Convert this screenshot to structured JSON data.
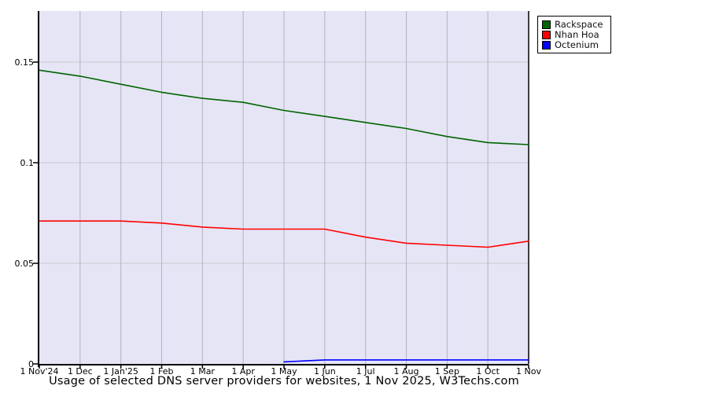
{
  "chart_data": {
    "type": "line",
    "title": "Usage of selected DNS server providers for websites, 1 Nov 2025, W3Techs.com",
    "categories": [
      "1 Nov'24",
      "1 Dec",
      "1 Jan'25",
      "1 Feb",
      "1 Mar",
      "1 Apr",
      "1 May",
      "1 Jun",
      "1 Jul",
      "1 Aug",
      "1 Sep",
      "1 Oct",
      "1 Nov"
    ],
    "series": [
      {
        "name": "Rackspace",
        "color": "#006400",
        "values": [
          0.146,
          0.143,
          0.139,
          0.135,
          0.132,
          0.13,
          0.126,
          0.123,
          0.12,
          0.117,
          0.113,
          0.11,
          0.109
        ]
      },
      {
        "name": "Nhan Hoa",
        "color": "#ff0000",
        "values": [
          0.071,
          0.071,
          0.071,
          0.07,
          0.068,
          0.067,
          0.067,
          0.067,
          0.063,
          0.06,
          0.059,
          0.058,
          0.061
        ]
      },
      {
        "name": "Octenium",
        "color": "#0000ff",
        "values": [
          null,
          null,
          null,
          null,
          null,
          null,
          0.001,
          0.002,
          0.002,
          0.002,
          0.002,
          0.002,
          0.002
        ]
      }
    ],
    "y_ticks": [
      {
        "label": "0",
        "value": 0
      },
      {
        "label": "0.05",
        "value": 0.05
      },
      {
        "label": "0.1",
        "value": 0.1
      },
      {
        "label": "0.15",
        "value": 0.15
      }
    ],
    "ylim": [
      0,
      0.1754
    ],
    "grid": true,
    "legend_position": "top-right-outside",
    "colors": {
      "plot_bg": "#e5e5f6",
      "grid_h": "#c9c9cd",
      "grid_v": "#b4b4bc",
      "axis": "#000000",
      "page_bg": "#ffffff"
    }
  }
}
